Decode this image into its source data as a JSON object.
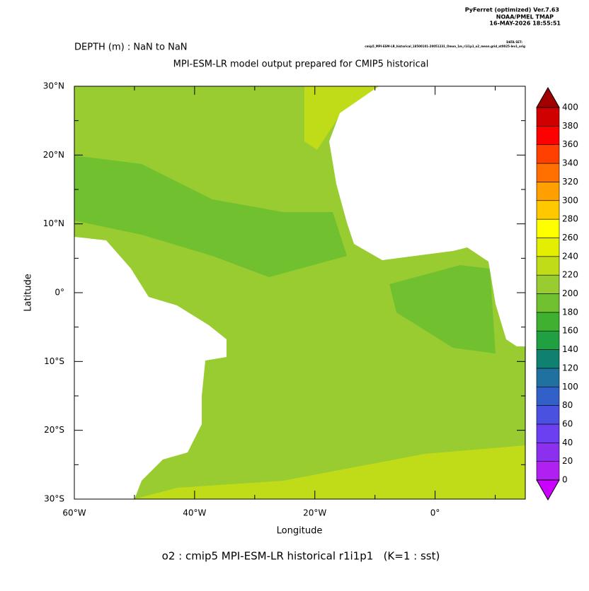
{
  "header": {
    "software": "PyFerret (optimized) Ver.7.63",
    "org": "NOAA/PMEL TMAP",
    "timestamp": "16-MAY-2026 18:55:51",
    "depth": "DEPTH (m) : NaN to NaN",
    "dataset_label": "DATA SET:",
    "dataset": "cmip5_MPI-ESM-LR_historical_18500101-20051231_Omon_1m_r1i1p1_o2_mean.grid_at0025-lev1_orig"
  },
  "chart_data": {
    "type": "map",
    "title": "MPI-ESM-LR model output prepared for CMIP5 historical",
    "x_label": "Longitude",
    "y_label": "Latitude",
    "footer": "o2 : cmip5 MPI-ESM-LR historical r1i1p1   (K=1 : sst)",
    "xlim": [
      -60,
      15
    ],
    "xticks": [
      {
        "value": -60,
        "label": "60°W"
      },
      {
        "value": -40,
        "label": "40°W"
      },
      {
        "value": -20,
        "label": "20°W"
      },
      {
        "value": 0,
        "label": "0°"
      }
    ],
    "xminor": [
      -50,
      -30,
      -10,
      10
    ],
    "ylim": [
      -30,
      30
    ],
    "yticks": [
      {
        "value": -30,
        "label": "30°S"
      },
      {
        "value": -20,
        "label": "20°S"
      },
      {
        "value": -10,
        "label": "10°S"
      },
      {
        "value": 0,
        "label": "0°"
      },
      {
        "value": 10,
        "label": "10°N"
      },
      {
        "value": 20,
        "label": "20°N"
      },
      {
        "value": 30,
        "label": "30°N"
      }
    ],
    "yminor": [
      -25,
      -15,
      -5,
      5,
      15,
      25
    ],
    "field_values": [
      205,
      190,
      225
    ],
    "colorbar": {
      "levels": [
        0,
        20,
        40,
        60,
        80,
        100,
        120,
        140,
        160,
        180,
        200,
        220,
        240,
        260,
        280,
        300,
        320,
        340,
        360,
        380,
        400
      ],
      "colors": [
        "#b020f0",
        "#8c30f0",
        "#6a40f0",
        "#4a50e0",
        "#3060c8",
        "#2070a0",
        "#108070",
        "#20a040",
        "#40b030",
        "#70c030",
        "#98cc30",
        "#c0dc18",
        "#e4ee00",
        "#ffff00",
        "#ffc800",
        "#ffa000",
        "#ff7000",
        "#ff4000",
        "#ff0000",
        "#d00000"
      ],
      "under_color": "#cc00ff",
      "over_color": "#a00000"
    }
  }
}
